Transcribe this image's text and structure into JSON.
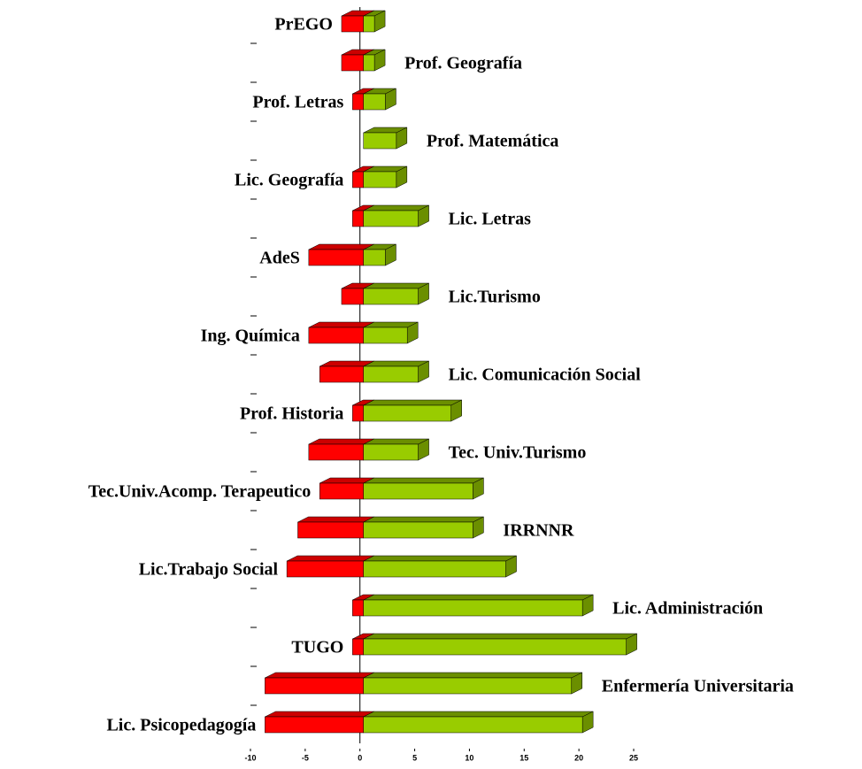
{
  "chart_data": {
    "type": "bar",
    "categories": [
      "PrEGO",
      "Prof. Geografía",
      "Prof. Letras",
      "Prof. Matemática",
      "Lic. Geografía",
      "Lic. Letras",
      "AdeS",
      "Lic.Turismo",
      "Ing. Química",
      "Lic. Comunicación  Social",
      "Prof. Historia",
      "Tec. Univ.Turismo",
      "Tec.Univ.Acomp. Terapeutico",
      "IRRNNR",
      "Lic.Trabajo Social",
      "Lic. Administración",
      "TUGO",
      "Enfermería Universitaria",
      "Lic. Psicopedagogía"
    ],
    "series": [
      {
        "color": "#ff0000",
        "values": [
          -2,
          -2,
          -1,
          0,
          -1,
          -1,
          -5,
          -2,
          -5,
          -4,
          -1,
          -5,
          -4,
          -6,
          -7,
          -1,
          -1,
          -9,
          -9
        ]
      },
      {
        "color": "#99cc00",
        "values": [
          1,
          1,
          2,
          3,
          3,
          5,
          2,
          5,
          4,
          5,
          8,
          5,
          10,
          10,
          13,
          20,
          24,
          19,
          20
        ]
      }
    ],
    "xlim": [
      -10,
      25
    ],
    "xticks": [
      -10,
      -5,
      0,
      5,
      10,
      15,
      20,
      25
    ]
  }
}
